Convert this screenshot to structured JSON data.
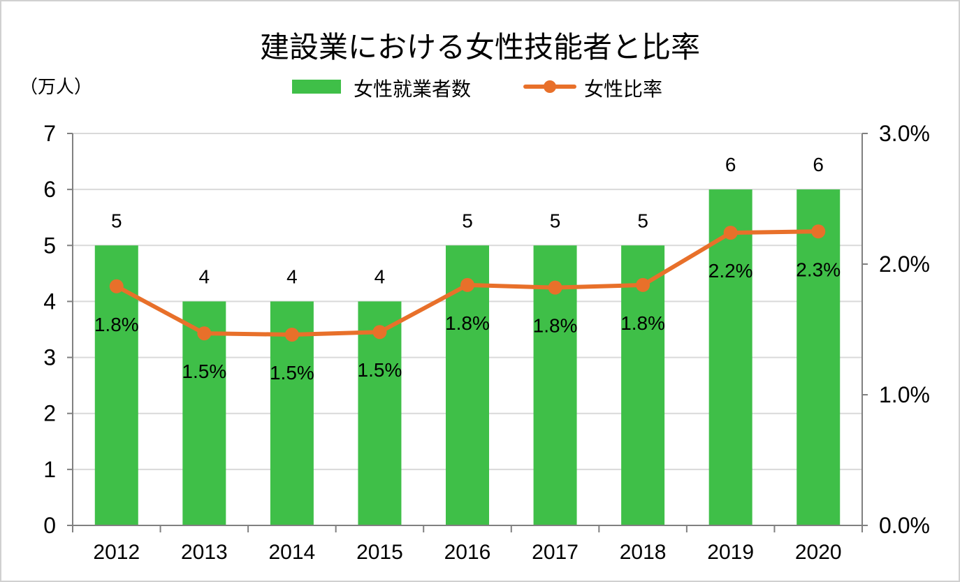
{
  "title": "建設業における女性技能者と比率",
  "unit_label": "（万人）",
  "colors": {
    "bar": "#3fbf48",
    "line": "#e8702a",
    "grid": "#d9d9d9",
    "axis": "#808080"
  },
  "legend": {
    "bar_label": "女性就業者数",
    "line_label": "女性比率"
  },
  "chart_data": {
    "type": "bar",
    "title": "建設業における女性技能者と比率",
    "categories": [
      "2012",
      "2013",
      "2014",
      "2015",
      "2016",
      "2017",
      "2018",
      "2019",
      "2020"
    ],
    "series": [
      {
        "name": "女性就業者数",
        "type": "bar",
        "axis": "left",
        "values": [
          5,
          4,
          4,
          4,
          5,
          5,
          5,
          6,
          6
        ]
      },
      {
        "name": "女性比率",
        "type": "line",
        "axis": "right",
        "values": [
          1.83,
          1.47,
          1.46,
          1.48,
          1.84,
          1.82,
          1.84,
          2.24,
          2.25
        ],
        "labels": [
          "1.8%",
          "1.5%",
          "1.5%",
          "1.5%",
          "1.8%",
          "1.8%",
          "1.8%",
          "2.2%",
          "2.3%"
        ]
      }
    ],
    "left_axis": {
      "range": [
        0,
        7
      ],
      "ticks": [
        "0",
        "1",
        "2",
        "3",
        "4",
        "5",
        "6",
        "7"
      ]
    },
    "right_axis": {
      "range": [
        0,
        3
      ],
      "ticks": [
        "0.0%",
        "1.0%",
        "2.0%",
        "3.0%"
      ],
      "tick_values": [
        0,
        1,
        2,
        3
      ]
    },
    "grid": true,
    "legend_position": "top"
  }
}
